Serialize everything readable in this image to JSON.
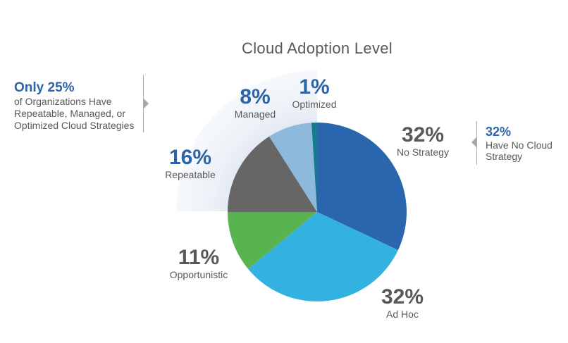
{
  "chart_data": {
    "type": "pie",
    "title": "Cloud Adoption Level",
    "start": "top",
    "direction": "clockwise",
    "slices": [
      {
        "label": "No Strategy",
        "value": 32,
        "display": "32%",
        "color": "#2a66ad"
      },
      {
        "label": "Ad Hoc",
        "value": 32,
        "display": "32%",
        "color": "#33b1e1"
      },
      {
        "label": "Opportunistic",
        "value": 11,
        "display": "11%",
        "color": "#58b44f"
      },
      {
        "label": "Repeatable",
        "value": 16,
        "display": "16%",
        "color": "#666666"
      },
      {
        "label": "Managed",
        "value": 8,
        "display": "8%",
        "color": "#8cb9dc"
      },
      {
        "label": "Optimized",
        "value": 1,
        "display": "1%",
        "color": "#137e89"
      }
    ]
  },
  "callouts": {
    "left": {
      "headline": "Only 25%",
      "text": [
        "of Organizations Have",
        "Repeatable, Managed, or",
        "Optimized Cloud Strategies"
      ]
    },
    "right": {
      "headline": "32%",
      "text": [
        "Have No Cloud",
        "Strategy"
      ]
    }
  },
  "colors": {
    "accent": "#2c64a8",
    "text": "#595959"
  }
}
